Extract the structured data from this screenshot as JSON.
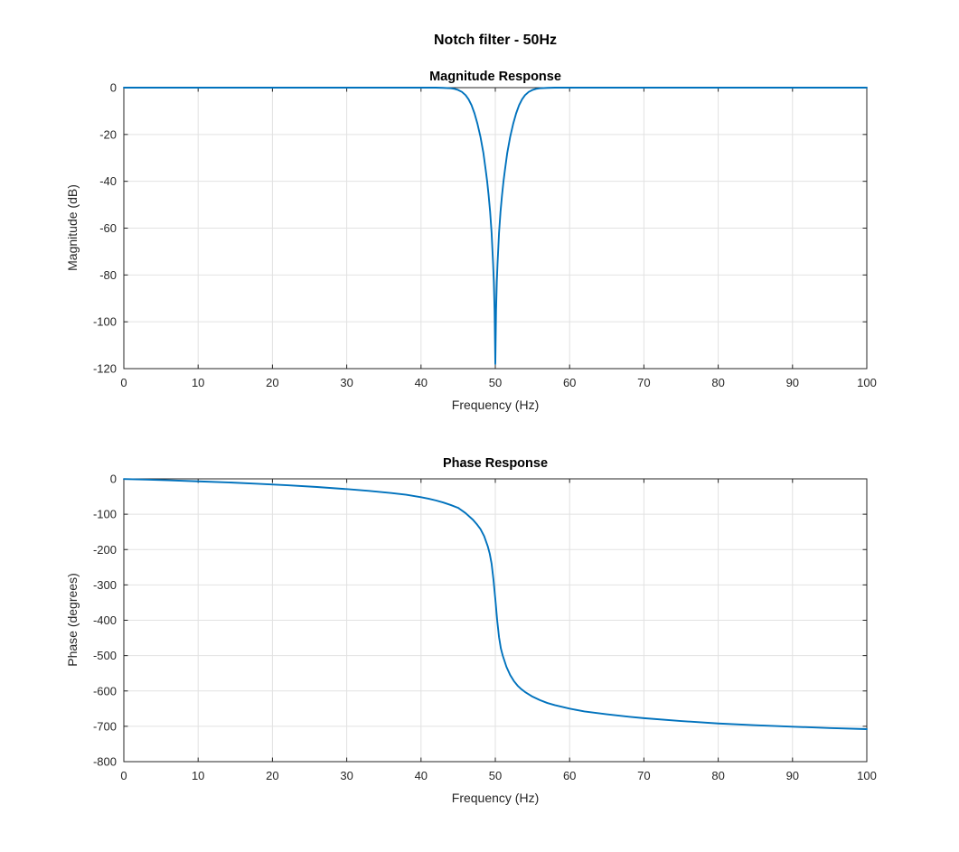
{
  "figure": {
    "title": "Notch filter - 50Hz",
    "background": "#ffffff"
  },
  "style": {
    "line_color": "#0072BD",
    "axis_color": "#262626",
    "grid_color": "#e2e2e2",
    "title_color": "#000000",
    "tick_length": 4.5,
    "line_width": 1.9,
    "tick_font_size": 13
  },
  "chart_data": [
    {
      "type": "line",
      "title": "Magnitude Response",
      "xlabel": "Frequency (Hz)",
      "ylabel": "Magnitude (dB)",
      "xlim": [
        0,
        100
      ],
      "ylim": [
        -120,
        0
      ],
      "xticks": [
        0,
        10,
        20,
        30,
        40,
        50,
        60,
        70,
        80,
        90,
        100
      ],
      "yticks": [
        0,
        -20,
        -40,
        -60,
        -80,
        -100,
        -120
      ],
      "grid": true,
      "legend": null,
      "series": [
        {
          "name": "magnitude",
          "x": [
            0,
            10,
            20,
            30,
            35,
            40,
            42,
            43,
            44,
            44.5,
            45,
            45.5,
            46,
            46.4,
            46.8,
            47.2,
            47.6,
            48,
            48.4,
            48.7,
            48.9,
            49.1,
            49.3,
            49.5,
            49.7,
            49.8,
            49.9,
            50,
            50.1,
            50.2,
            50.3,
            50.5,
            50.7,
            50.9,
            51.1,
            51.3,
            51.6,
            52,
            52.4,
            52.8,
            53.2,
            53.6,
            54,
            54.5,
            55,
            55.5,
            56,
            57,
            58,
            60,
            65,
            70,
            80,
            90,
            100
          ],
          "y": [
            0,
            0,
            0,
            0,
            0,
            0,
            0,
            -0.1,
            -0.25,
            -0.5,
            -1,
            -1.8,
            -3.2,
            -5,
            -7.5,
            -11,
            -15.5,
            -21,
            -28,
            -35,
            -40,
            -46,
            -53,
            -62,
            -75,
            -83,
            -95,
            -118,
            -95,
            -83,
            -75,
            -62,
            -53,
            -46,
            -40,
            -35,
            -28,
            -21,
            -15.5,
            -11,
            -7.5,
            -5,
            -3.2,
            -1.8,
            -1,
            -0.5,
            -0.25,
            -0.1,
            0,
            0,
            0,
            0,
            0,
            0,
            0
          ]
        }
      ]
    },
    {
      "type": "line",
      "title": "Phase Response",
      "xlabel": "Frequency (Hz)",
      "ylabel": "Phase (degrees)",
      "xlim": [
        0,
        100
      ],
      "ylim": [
        -800,
        0
      ],
      "xticks": [
        0,
        10,
        20,
        30,
        40,
        50,
        60,
        70,
        80,
        90,
        100
      ],
      "yticks": [
        0,
        -100,
        -200,
        -300,
        -400,
        -500,
        -600,
        -700,
        -800
      ],
      "grid": true,
      "legend": null,
      "series": [
        {
          "name": "phase",
          "x": [
            0,
            3,
            6,
            10,
            14,
            18,
            22,
            26,
            30,
            33,
            36,
            38,
            40,
            41,
            42,
            43,
            44,
            45,
            46,
            47,
            47.5,
            48,
            48.5,
            49,
            49.25,
            49.5,
            49.75,
            50,
            50.25,
            50.5,
            50.75,
            51,
            51.5,
            52,
            52.5,
            53,
            53.5,
            54,
            55,
            56,
            57,
            58,
            60,
            62,
            65,
            68,
            70,
            75,
            80,
            85,
            90,
            95,
            100
          ],
          "y": [
            -0.5,
            -2,
            -4,
            -7,
            -10,
            -14,
            -18,
            -23,
            -29,
            -34,
            -40,
            -45,
            -52,
            -56,
            -61,
            -67,
            -74,
            -82,
            -97,
            -116,
            -128,
            -142,
            -162,
            -192,
            -212,
            -240,
            -285,
            -340,
            -400,
            -448,
            -480,
            -500,
            -532,
            -555,
            -572,
            -585,
            -595,
            -603,
            -616,
            -626,
            -634,
            -640,
            -650,
            -658,
            -666,
            -673,
            -677,
            -685,
            -692,
            -697,
            -701,
            -705,
            -708
          ]
        }
      ]
    }
  ]
}
